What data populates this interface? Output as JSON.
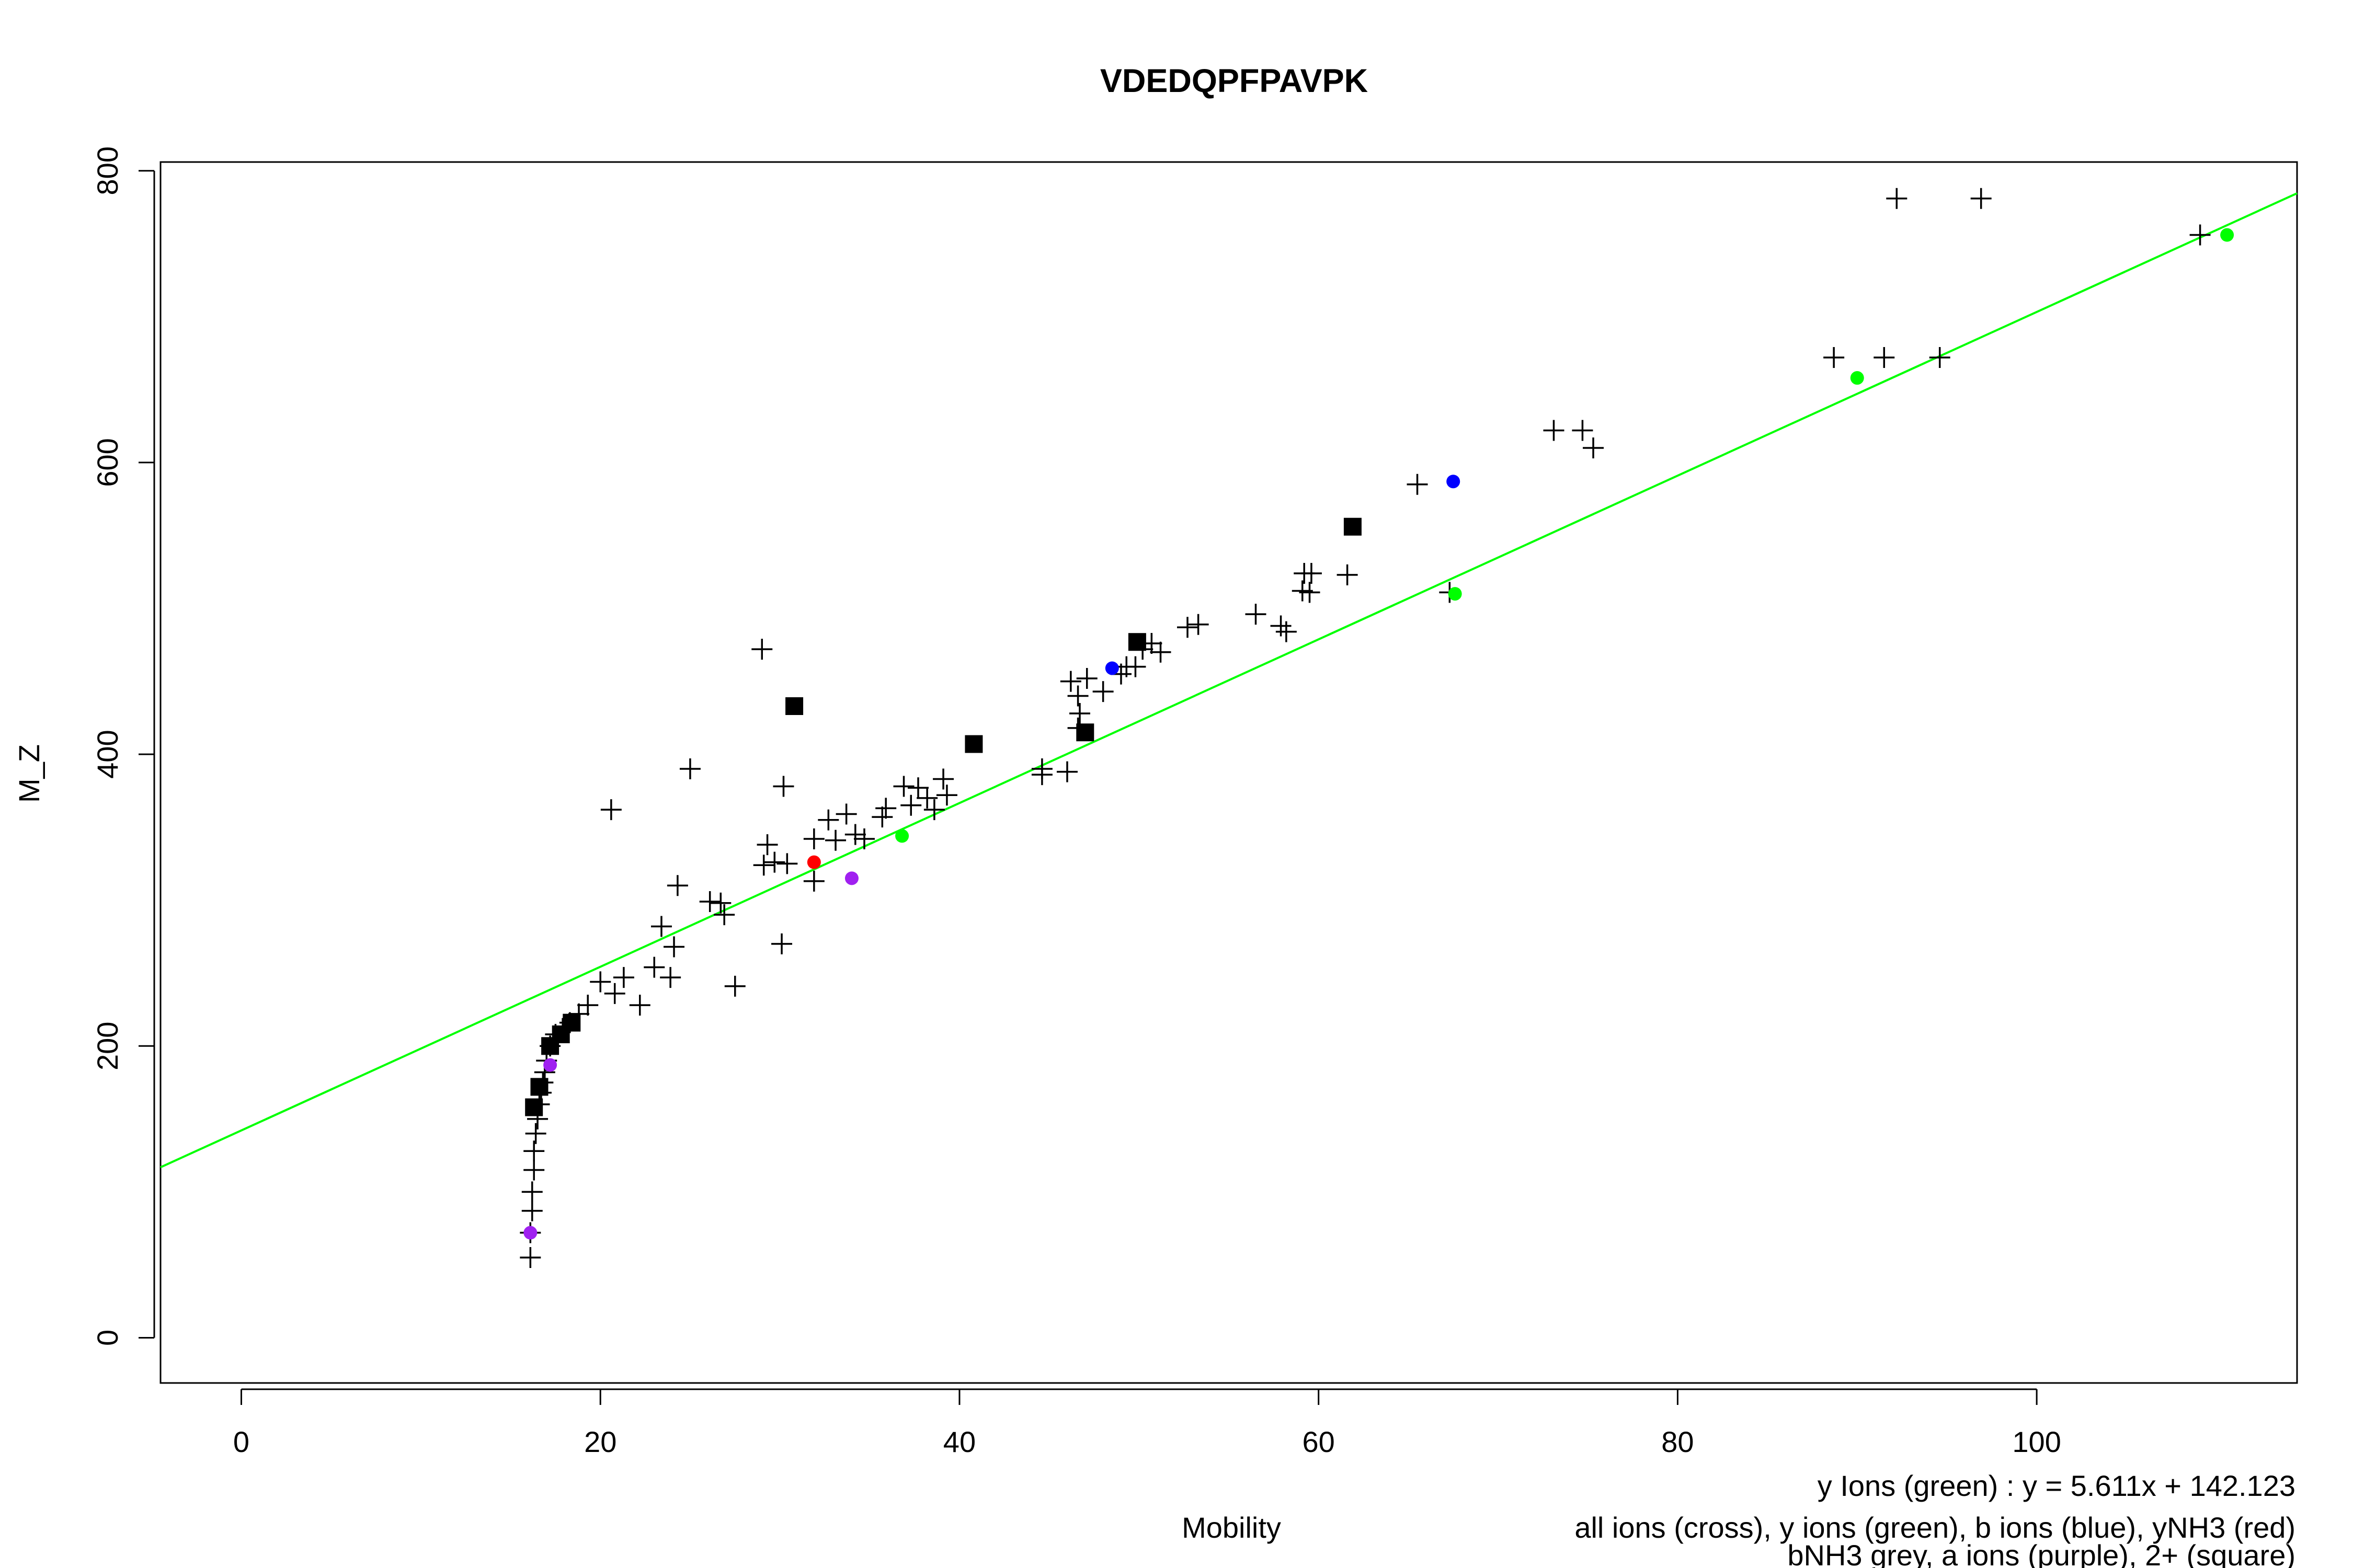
{
  "chart_data": {
    "type": "scatter",
    "title": "VDEDQPFPAVPK",
    "xlabel": "Mobility",
    "ylabel": "M_Z",
    "xlim": [
      -4.5,
      114.5
    ],
    "ylim": [
      -31,
      806
    ],
    "x_ticks": [
      0,
      20,
      40,
      60,
      80,
      100
    ],
    "y_ticks": [
      0,
      200,
      400,
      600,
      800
    ],
    "grid": false,
    "fit_line": {
      "label": "y Ions (green)",
      "equation": "y = 5.611x + 142.123",
      "slope": 5.611,
      "intercept": 142.123,
      "color": "#00ff00"
    },
    "legend": [
      "all ions (cross), y ions (green), b ions (blue), yNH3 (red)",
      "bNH3 grey, a ions (purple), 2+ (square)"
    ],
    "series": [
      {
        "name": "all ions (cross)",
        "marker": "cross",
        "color": "#000000",
        "points": [
          [
            16.1,
            55
          ],
          [
            16.1,
            72
          ],
          [
            16.2,
            87
          ],
          [
            16.2,
            100
          ],
          [
            16.3,
            115
          ],
          [
            16.3,
            128
          ],
          [
            16.4,
            140
          ],
          [
            16.5,
            150
          ],
          [
            16.6,
            160
          ],
          [
            16.7,
            168
          ],
          [
            16.8,
            175
          ],
          [
            16.9,
            182
          ],
          [
            17.0,
            190
          ],
          [
            17.2,
            200
          ],
          [
            17.5,
            208
          ],
          [
            17.9,
            212
          ],
          [
            18.3,
            216
          ],
          [
            18.8,
            222
          ],
          [
            19.3,
            228
          ],
          [
            20.0,
            244
          ],
          [
            20.8,
            236
          ],
          [
            21.3,
            247
          ],
          [
            22.2,
            228
          ],
          [
            23.0,
            254
          ],
          [
            23.4,
            282
          ],
          [
            23.9,
            247
          ],
          [
            24.3,
            310
          ],
          [
            24.1,
            268
          ],
          [
            20.6,
            362
          ],
          [
            25.0,
            390
          ],
          [
            26.1,
            299
          ],
          [
            26.9,
            290
          ],
          [
            26.7,
            298
          ],
          [
            27.5,
            241
          ],
          [
            29.0,
            472
          ],
          [
            29.3,
            338
          ],
          [
            29.1,
            324
          ],
          [
            29.7,
            326
          ],
          [
            30.1,
            270
          ],
          [
            30.2,
            378
          ],
          [
            30.4,
            325
          ],
          [
            31.9,
            342
          ],
          [
            31.9,
            313
          ],
          [
            32.7,
            355
          ],
          [
            33.1,
            341
          ],
          [
            33.7,
            359
          ],
          [
            34.2,
            345
          ],
          [
            34.7,
            342
          ],
          [
            35.7,
            357
          ],
          [
            35.9,
            363
          ],
          [
            36.9,
            378
          ],
          [
            37.3,
            365
          ],
          [
            37.7,
            377
          ],
          [
            38.2,
            370
          ],
          [
            38.6,
            362
          ],
          [
            39.1,
            383
          ],
          [
            39.3,
            372
          ],
          [
            44.6,
            386
          ],
          [
            44.6,
            390
          ],
          [
            46.0,
            388
          ],
          [
            46.2,
            450
          ],
          [
            46.6,
            440
          ],
          [
            47.1,
            452
          ],
          [
            46.7,
            428
          ],
          [
            46.6,
            418
          ],
          [
            48.0,
            443
          ],
          [
            49.0,
            455
          ],
          [
            49.3,
            460
          ],
          [
            49.8,
            460
          ],
          [
            50.2,
            472
          ],
          [
            50.7,
            476
          ],
          [
            51.2,
            470
          ],
          [
            52.7,
            487
          ],
          [
            53.3,
            489
          ],
          [
            56.5,
            496
          ],
          [
            57.9,
            488
          ],
          [
            58.2,
            484
          ],
          [
            59.1,
            512
          ],
          [
            59.5,
            511
          ],
          [
            59.2,
            524
          ],
          [
            59.6,
            524
          ],
          [
            61.6,
            523
          ],
          [
            65.5,
            585
          ],
          [
            67.3,
            511
          ],
          [
            73.1,
            622
          ],
          [
            74.7,
            622
          ],
          [
            75.3,
            610
          ],
          [
            88.7,
            672
          ],
          [
            91.5,
            672
          ],
          [
            94.6,
            672
          ],
          [
            92.2,
            781
          ],
          [
            96.9,
            781
          ],
          [
            109.1,
            756
          ]
        ]
      },
      {
        "name": "y ions (green)",
        "marker": "dot",
        "color": "#00ff00",
        "points": [
          [
            36.8,
            344
          ],
          [
            67.6,
            510
          ],
          [
            90.0,
            658
          ],
          [
            110.6,
            756
          ]
        ]
      },
      {
        "name": "b ions (blue)",
        "marker": "dot",
        "color": "#0000ff",
        "points": [
          [
            48.5,
            459
          ],
          [
            67.5,
            587
          ]
        ]
      },
      {
        "name": "yNH3 (red)",
        "marker": "dot",
        "color": "#ff0000",
        "points": [
          [
            31.9,
            326
          ]
        ]
      },
      {
        "name": "a ions (purple)",
        "marker": "dot",
        "color": "#a020f0",
        "points": [
          [
            16.1,
            72
          ],
          [
            17.2,
            187
          ],
          [
            34.0,
            315
          ]
        ]
      },
      {
        "name": "2+ (square)",
        "marker": "square",
        "color": "#000000",
        "points": [
          [
            16.3,
            158
          ],
          [
            16.6,
            172
          ],
          [
            17.2,
            200
          ],
          [
            17.8,
            208
          ],
          [
            18.4,
            216
          ],
          [
            30.8,
            433
          ],
          [
            40.8,
            407
          ],
          [
            47.0,
            415
          ],
          [
            49.9,
            477
          ],
          [
            61.9,
            556
          ]
        ]
      }
    ]
  }
}
